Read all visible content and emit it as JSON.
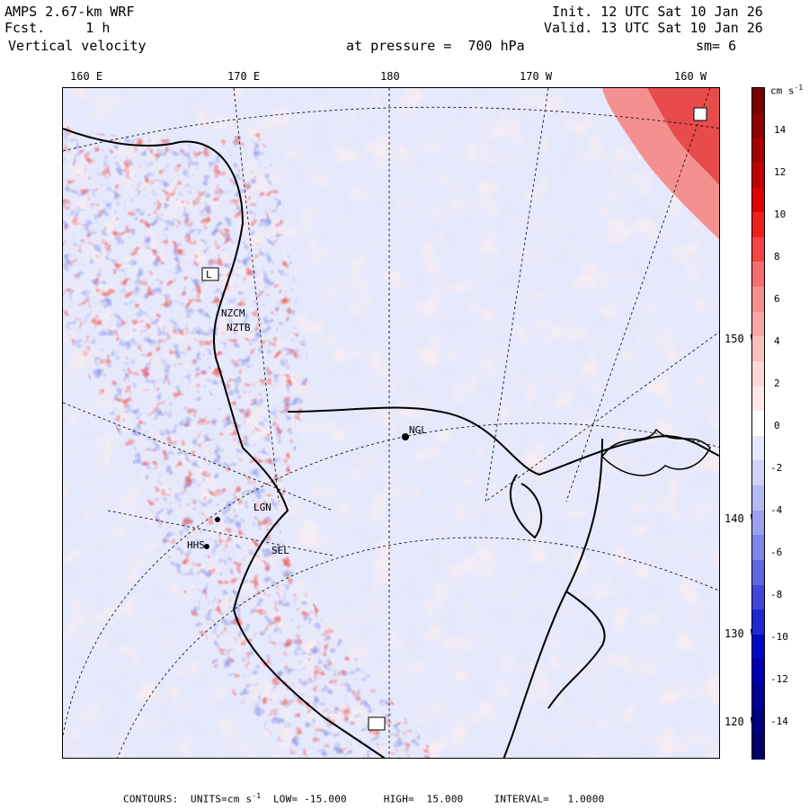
{
  "header": {
    "line1_left": "AMPS 2.67-km WRF",
    "line2_left": "Fcst.     1 h",
    "line3_left": " Vertical velocity",
    "line1_right": "Init. 12 UTC Sat 10 Jan 26",
    "line2_right": "Valid. 13 UTC Sat 10 Jan 26",
    "pressure": "at pressure =  700 hPa",
    "smoothing": "sm= 6"
  },
  "longitude_labels": [
    "160 E",
    "170 E",
    "180",
    "170 W",
    "160 W"
  ],
  "latitude_labels": [
    "150 W",
    "140 W",
    "130 W",
    "120 W"
  ],
  "stations": [
    "NZTB",
    "NZCM",
    "NGL",
    "LGN",
    "SEL",
    "HHS",
    "L"
  ],
  "colorbar": {
    "units": "cm s",
    "units_exp": "-1",
    "ticks": [
      "14",
      "12",
      "10",
      "8",
      "6",
      "4",
      "2",
      "0",
      "-2",
      "-4",
      "-6",
      "-8",
      "-10",
      "-12",
      "-14"
    ],
    "colors": [
      "#7a0000",
      "#8e0000",
      "#a60000",
      "#c00000",
      "#dd0000",
      "#ee2020",
      "#f54545",
      "#f86e6e",
      "#f59090",
      "#f7a8a8",
      "#f9c0c0",
      "#fbd7d7",
      "#fde8e8",
      "#ffffff",
      "#e6e8fb",
      "#d0d3f7",
      "#b5baf2",
      "#9ba1ee",
      "#7f86e8",
      "#6068e0",
      "#4048d8",
      "#2028d0",
      "#0008c8",
      "#0000b0",
      "#000098",
      "#000080",
      "#000068"
    ]
  },
  "footer": {
    "text": "CONTOURS:  UNITS=cm s",
    "exp": "-1",
    "rest": "  LOW= -15.000      HIGH=  15.000     INTERVAL=   1.0000"
  }
}
